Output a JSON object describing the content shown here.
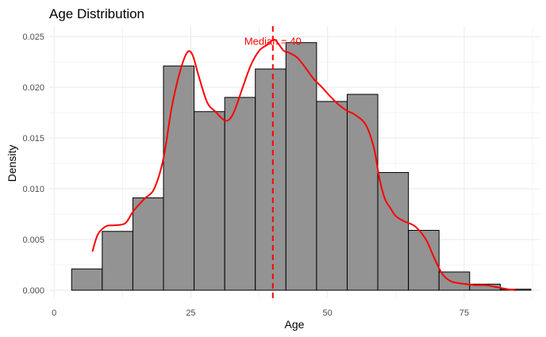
{
  "chart_data": {
    "type": "bar",
    "title": "Age Distribution",
    "xlabel": "Age",
    "ylabel": "Density",
    "xlim": [
      -0.9,
      88.8
    ],
    "ylim": [
      -0.00078,
      0.02602
    ],
    "x_ticks": [
      0,
      25,
      50,
      75
    ],
    "x_tick_labels": [
      "0",
      "25",
      "50",
      "75"
    ],
    "y_ticks": [
      0.0,
      0.005,
      0.01,
      0.015,
      0.02,
      0.025
    ],
    "y_tick_labels": [
      "0.000",
      "0.005",
      "0.010",
      "0.015",
      "0.020",
      "0.025"
    ],
    "grid": true,
    "bins": [
      {
        "x0": 3.2,
        "x1": 8.8,
        "density": 0.0021
      },
      {
        "x0": 8.8,
        "x1": 14.4,
        "density": 0.0058
      },
      {
        "x0": 14.4,
        "x1": 20.0,
        "density": 0.0091
      },
      {
        "x0": 20.0,
        "x1": 25.6,
        "density": 0.0221
      },
      {
        "x0": 25.6,
        "x1": 31.2,
        "density": 0.0176
      },
      {
        "x0": 31.2,
        "x1": 36.8,
        "density": 0.019
      },
      {
        "x0": 36.8,
        "x1": 42.4,
        "density": 0.0218
      },
      {
        "x0": 42.4,
        "x1": 48.0,
        "density": 0.0244
      },
      {
        "x0": 48.0,
        "x1": 53.6,
        "density": 0.0186
      },
      {
        "x0": 53.6,
        "x1": 59.2,
        "density": 0.0193
      },
      {
        "x0": 59.2,
        "x1": 64.8,
        "density": 0.0116
      },
      {
        "x0": 64.8,
        "x1": 70.4,
        "density": 0.0059
      },
      {
        "x0": 70.4,
        "x1": 76.0,
        "density": 0.0018
      },
      {
        "x0": 76.0,
        "x1": 81.6,
        "density": 0.0006
      },
      {
        "x0": 81.6,
        "x1": 87.2,
        "density": 0.0001
      }
    ],
    "density_curve": {
      "x": [
        7.0,
        8.0,
        9.5,
        11.0,
        13.0,
        14.5,
        16.5,
        18.3,
        20.0,
        21.5,
        23.0,
        24.3,
        25.3,
        26.5,
        28.0,
        29.5,
        31.0,
        32.0,
        33.0,
        34.5,
        36.0,
        37.5,
        39.0,
        40.2,
        41.0,
        42.0,
        43.0,
        44.5,
        46.0,
        47.5,
        49.0,
        50.5,
        52.0,
        53.5,
        55.0,
        57.0,
        58.5,
        59.5,
        60.5,
        61.5,
        62.5,
        64.0,
        66.0,
        68.0,
        69.5,
        71.0,
        72.5,
        74.0,
        75.5,
        77.0,
        79.0,
        81.0,
        83.0,
        84.5
      ],
      "y": [
        0.0038,
        0.0055,
        0.0063,
        0.0064,
        0.0066,
        0.0078,
        0.009,
        0.01,
        0.013,
        0.018,
        0.0215,
        0.0234,
        0.0232,
        0.021,
        0.0185,
        0.0176,
        0.0168,
        0.0168,
        0.0177,
        0.02,
        0.0222,
        0.0236,
        0.0242,
        0.0247,
        0.0243,
        0.0236,
        0.0234,
        0.0229,
        0.0219,
        0.0208,
        0.02,
        0.0191,
        0.0183,
        0.0177,
        0.0173,
        0.0163,
        0.014,
        0.011,
        0.009,
        0.0081,
        0.0073,
        0.0068,
        0.0063,
        0.005,
        0.0032,
        0.0016,
        0.0009,
        0.0007,
        0.0006,
        0.0005,
        0.0005,
        0.0003,
        0.0001,
        0.0
      ],
      "color": "#ff0000"
    },
    "median_line": {
      "x": 40,
      "label": "Median = 40",
      "color": "#ff0000",
      "style": "dashed"
    },
    "bar_fill": "#939393",
    "bar_stroke": "#000000",
    "grid_color": "#ebebeb"
  }
}
